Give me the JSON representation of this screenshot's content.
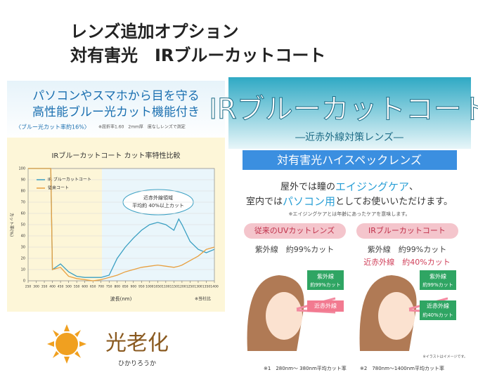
{
  "header": {
    "line1": "レンズ追加オプション",
    "line2": "対有害光　IRブルーカットコート"
  },
  "left_panel": {
    "headline1": "パソコンやスマホから目を守る",
    "headline2": "高性能ブルー光カット機能付き",
    "rate": "〈ブルー光カット率約16%〉",
    "measure_note": "※屈折率1.60　2mm厚　度なしレンズで測定",
    "chart": {
      "type": "line",
      "title": "IRブルーカットコート カット率特性比較",
      "x_label": "波長(nm)",
      "y_label": "カット率(%)",
      "note": "※当社比",
      "annotation": [
        "近赤外線領域",
        "平均約 40%以上カット"
      ],
      "x": [
        250,
        300,
        350,
        390,
        400,
        450,
        500,
        550,
        600,
        650,
        700,
        750,
        800,
        850,
        900,
        950,
        1000,
        1050,
        1100,
        1150,
        1180,
        1200,
        1250,
        1300,
        1350,
        1400
      ],
      "series": [
        {
          "name": "IR ブルーカットコート",
          "color": "#3a9fc2",
          "values": [
            100,
            100,
            100,
            100,
            10,
            15,
            8,
            4,
            3,
            3,
            3,
            5,
            20,
            30,
            38,
            45,
            50,
            52,
            50,
            45,
            55,
            50,
            35,
            28,
            25,
            28
          ]
        },
        {
          "name": "従来コート",
          "color": "#e8a040",
          "values": [
            100,
            100,
            100,
            100,
            10,
            12,
            4,
            2,
            1,
            0,
            1,
            3,
            5,
            8,
            10,
            12,
            13,
            14,
            13,
            12,
            13,
            14,
            18,
            22,
            28,
            30
          ]
        }
      ],
      "xlim": [
        250,
        1400
      ],
      "ylim": [
        0,
        100
      ],
      "xticks": [
        250,
        300,
        350,
        400,
        450,
        500,
        550,
        600,
        650,
        700,
        750,
        800,
        850,
        900,
        950,
        1000,
        1050,
        1100,
        1150,
        1200,
        1250,
        1300,
        1350,
        1400
      ],
      "yticks": [
        0,
        10,
        20,
        30,
        40,
        50,
        60,
        70,
        80,
        90,
        100
      ],
      "grid": true
    }
  },
  "logo": {
    "title": "光老化",
    "reading": "ひかりろうか"
  },
  "right_panel": {
    "title": "IRブルーカットコート",
    "subtitle": "―近赤外線対策レンズ―",
    "banner": "対有害光ハイスペックレンズ",
    "line1": [
      "屋外では瞳の",
      "エイジングケア",
      "、"
    ],
    "line2": [
      "室内では",
      "パソコン用",
      "としてお使いいただけます。"
    ],
    "note": "※エイジングケアとは年齢にあったケアを意味します。",
    "cards": [
      {
        "title": "従来のUVカットレンズ",
        "rows": [
          "紫外線　約99%カット"
        ],
        "bubbles": [
          "紫外線",
          "約99%カット",
          "近赤外線"
        ]
      },
      {
        "title": "IRブルーカットコート",
        "rows": [
          "紫外線　約99%カット",
          "近赤外線　約40%カット"
        ],
        "bubbles": [
          "紫外線",
          "約99%カット",
          "近赤外線",
          "約40%カット"
        ]
      }
    ],
    "footnotes": [
      "※1　280nm〜 380nm平均カット率",
      "※2　780nm〜1400nm平均カット率"
    ],
    "illust_note": "※イラストはイメージです。"
  }
}
